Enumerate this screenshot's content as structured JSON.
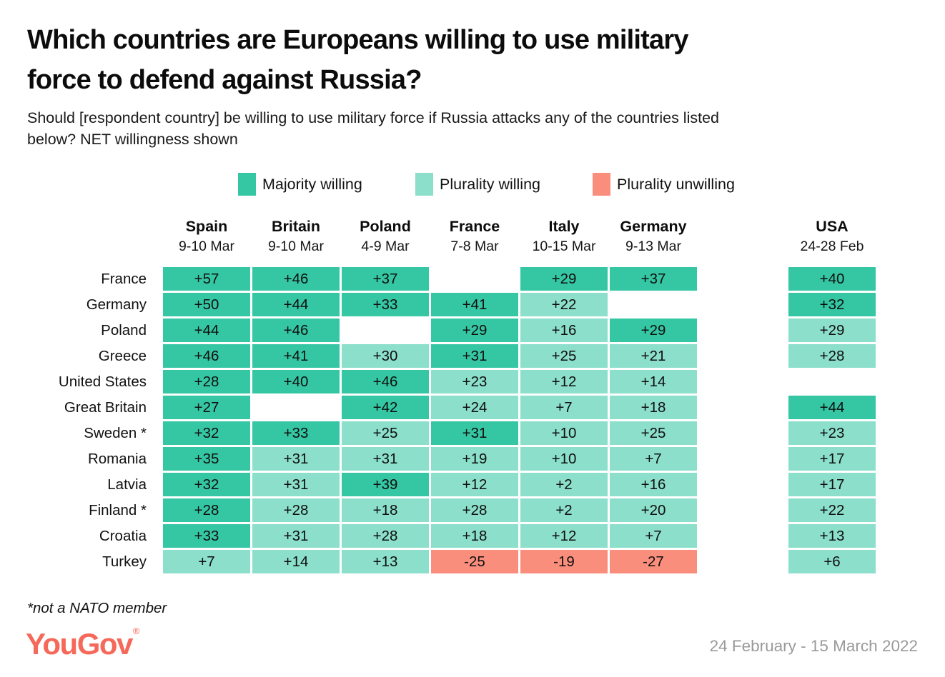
{
  "palette": {
    "majority": "#35C7A3",
    "plurality": "#8BDFCB",
    "unwilling": "#FA8E7C",
    "brand": "#F5695A",
    "date_gray": "#9A9A9A"
  },
  "title_lines": [
    "Which countries are Europeans willing to use military",
    "force to defend against Russia?"
  ],
  "subtitle_lines": [
    "Should [respondent country] be willing to use military force if Russia attacks any of the countries listed",
    "below? NET willingness shown"
  ],
  "legend": [
    {
      "label": "Majority willing",
      "key": "majority"
    },
    {
      "label": "Plurality willing",
      "key": "plurality"
    },
    {
      "label": "Plurality unwilling",
      "key": "unwilling"
    }
  ],
  "footnote": "*not a NATO member",
  "brand": {
    "logo": "YouGov",
    "registered": "®"
  },
  "date_range": "24 February - 15 March 2022",
  "chart_data": {
    "type": "heatmap",
    "title": "Which countries are Europeans willing to use military force to defend against Russia?",
    "subtitle": "Should [respondent country] be willing to use military force if Russia attacks any of the countries listed below? NET willingness shown",
    "legend_entries": [
      "Majority willing",
      "Plurality willing",
      "Plurality unwilling"
    ],
    "columns": [
      {
        "name": "Spain",
        "dates": "9-10 Mar"
      },
      {
        "name": "Britain",
        "dates": "9-10 Mar"
      },
      {
        "name": "Poland",
        "dates": "4-9 Mar"
      },
      {
        "name": "France",
        "dates": "7-8 Mar"
      },
      {
        "name": "Italy",
        "dates": "10-15 Mar"
      },
      {
        "name": "Germany",
        "dates": "9-13 Mar"
      },
      {
        "name": "USA",
        "dates": "24-28 Feb"
      }
    ],
    "rows": [
      {
        "label": "France",
        "cells": [
          {
            "value": 57,
            "label": "+57",
            "category": "majority"
          },
          {
            "value": 46,
            "label": "+46",
            "category": "majority"
          },
          {
            "value": 37,
            "label": "+37",
            "category": "majority"
          },
          null,
          {
            "value": 29,
            "label": "+29",
            "category": "majority"
          },
          {
            "value": 37,
            "label": "+37",
            "category": "majority"
          },
          {
            "value": 40,
            "label": "+40",
            "category": "majority"
          }
        ]
      },
      {
        "label": "Germany",
        "cells": [
          {
            "value": 50,
            "label": "+50",
            "category": "majority"
          },
          {
            "value": 44,
            "label": "+44",
            "category": "majority"
          },
          {
            "value": 33,
            "label": "+33",
            "category": "majority"
          },
          {
            "value": 41,
            "label": "+41",
            "category": "majority"
          },
          {
            "value": 22,
            "label": "+22",
            "category": "plurality"
          },
          null,
          {
            "value": 32,
            "label": "+32",
            "category": "majority"
          }
        ]
      },
      {
        "label": "Poland",
        "cells": [
          {
            "value": 44,
            "label": "+44",
            "category": "majority"
          },
          {
            "value": 46,
            "label": "+46",
            "category": "majority"
          },
          null,
          {
            "value": 29,
            "label": "+29",
            "category": "majority"
          },
          {
            "value": 16,
            "label": "+16",
            "category": "plurality"
          },
          {
            "value": 29,
            "label": "+29",
            "category": "majority"
          },
          {
            "value": 29,
            "label": "+29",
            "category": "plurality"
          }
        ]
      },
      {
        "label": "Greece",
        "cells": [
          {
            "value": 46,
            "label": "+46",
            "category": "majority"
          },
          {
            "value": 41,
            "label": "+41",
            "category": "majority"
          },
          {
            "value": 30,
            "label": "+30",
            "category": "plurality"
          },
          {
            "value": 31,
            "label": "+31",
            "category": "majority"
          },
          {
            "value": 25,
            "label": "+25",
            "category": "plurality"
          },
          {
            "value": 21,
            "label": "+21",
            "category": "plurality"
          },
          {
            "value": 28,
            "label": "+28",
            "category": "plurality"
          }
        ]
      },
      {
        "label": "United States",
        "cells": [
          {
            "value": 28,
            "label": "+28",
            "category": "majority"
          },
          {
            "value": 40,
            "label": "+40",
            "category": "majority"
          },
          {
            "value": 46,
            "label": "+46",
            "category": "majority"
          },
          {
            "value": 23,
            "label": "+23",
            "category": "plurality"
          },
          {
            "value": 12,
            "label": "+12",
            "category": "plurality"
          },
          {
            "value": 14,
            "label": "+14",
            "category": "plurality"
          },
          null
        ]
      },
      {
        "label": "Great Britain",
        "cells": [
          {
            "value": 27,
            "label": "+27",
            "category": "majority"
          },
          null,
          {
            "value": 42,
            "label": "+42",
            "category": "majority"
          },
          {
            "value": 24,
            "label": "+24",
            "category": "plurality"
          },
          {
            "value": 7,
            "label": "+7",
            "category": "plurality"
          },
          {
            "value": 18,
            "label": "+18",
            "category": "plurality"
          },
          {
            "value": 44,
            "label": "+44",
            "category": "majority"
          }
        ]
      },
      {
        "label": "Sweden *",
        "cells": [
          {
            "value": 32,
            "label": "+32",
            "category": "majority"
          },
          {
            "value": 33,
            "label": "+33",
            "category": "majority"
          },
          {
            "value": 25,
            "label": "+25",
            "category": "plurality"
          },
          {
            "value": 31,
            "label": "+31",
            "category": "majority"
          },
          {
            "value": 10,
            "label": "+10",
            "category": "plurality"
          },
          {
            "value": 25,
            "label": "+25",
            "category": "plurality"
          },
          {
            "value": 23,
            "label": "+23",
            "category": "plurality"
          }
        ]
      },
      {
        "label": "Romania",
        "cells": [
          {
            "value": 35,
            "label": "+35",
            "category": "majority"
          },
          {
            "value": 31,
            "label": "+31",
            "category": "plurality"
          },
          {
            "value": 31,
            "label": "+31",
            "category": "plurality"
          },
          {
            "value": 19,
            "label": "+19",
            "category": "plurality"
          },
          {
            "value": 10,
            "label": "+10",
            "category": "plurality"
          },
          {
            "value": 7,
            "label": "+7",
            "category": "plurality"
          },
          {
            "value": 17,
            "label": "+17",
            "category": "plurality"
          }
        ]
      },
      {
        "label": "Latvia",
        "cells": [
          {
            "value": 32,
            "label": "+32",
            "category": "majority"
          },
          {
            "value": 31,
            "label": "+31",
            "category": "plurality"
          },
          {
            "value": 39,
            "label": "+39",
            "category": "majority"
          },
          {
            "value": 12,
            "label": "+12",
            "category": "plurality"
          },
          {
            "value": 2,
            "label": "+2",
            "category": "plurality"
          },
          {
            "value": 16,
            "label": "+16",
            "category": "plurality"
          },
          {
            "value": 17,
            "label": "+17",
            "category": "plurality"
          }
        ]
      },
      {
        "label": "Finland *",
        "cells": [
          {
            "value": 28,
            "label": "+28",
            "category": "majority"
          },
          {
            "value": 28,
            "label": "+28",
            "category": "plurality"
          },
          {
            "value": 18,
            "label": "+18",
            "category": "plurality"
          },
          {
            "value": 28,
            "label": "+28",
            "category": "plurality"
          },
          {
            "value": 2,
            "label": "+2",
            "category": "plurality"
          },
          {
            "value": 20,
            "label": "+20",
            "category": "plurality"
          },
          {
            "value": 22,
            "label": "+22",
            "category": "plurality"
          }
        ]
      },
      {
        "label": "Croatia",
        "cells": [
          {
            "value": 33,
            "label": "+33",
            "category": "majority"
          },
          {
            "value": 31,
            "label": "+31",
            "category": "plurality"
          },
          {
            "value": 28,
            "label": "+28",
            "category": "plurality"
          },
          {
            "value": 18,
            "label": "+18",
            "category": "plurality"
          },
          {
            "value": 12,
            "label": "+12",
            "category": "plurality"
          },
          {
            "value": 7,
            "label": "+7",
            "category": "plurality"
          },
          {
            "value": 13,
            "label": "+13",
            "category": "plurality"
          }
        ]
      },
      {
        "label": "Turkey",
        "cells": [
          {
            "value": 7,
            "label": "+7",
            "category": "plurality"
          },
          {
            "value": 14,
            "label": "+14",
            "category": "plurality"
          },
          {
            "value": 13,
            "label": "+13",
            "category": "plurality"
          },
          {
            "value": -25,
            "label": "-25",
            "category": "unwilling"
          },
          {
            "value": -19,
            "label": "-19",
            "category": "unwilling"
          },
          {
            "value": -27,
            "label": "-27",
            "category": "unwilling"
          },
          {
            "value": 6,
            "label": "+6",
            "category": "plurality"
          }
        ]
      }
    ]
  }
}
